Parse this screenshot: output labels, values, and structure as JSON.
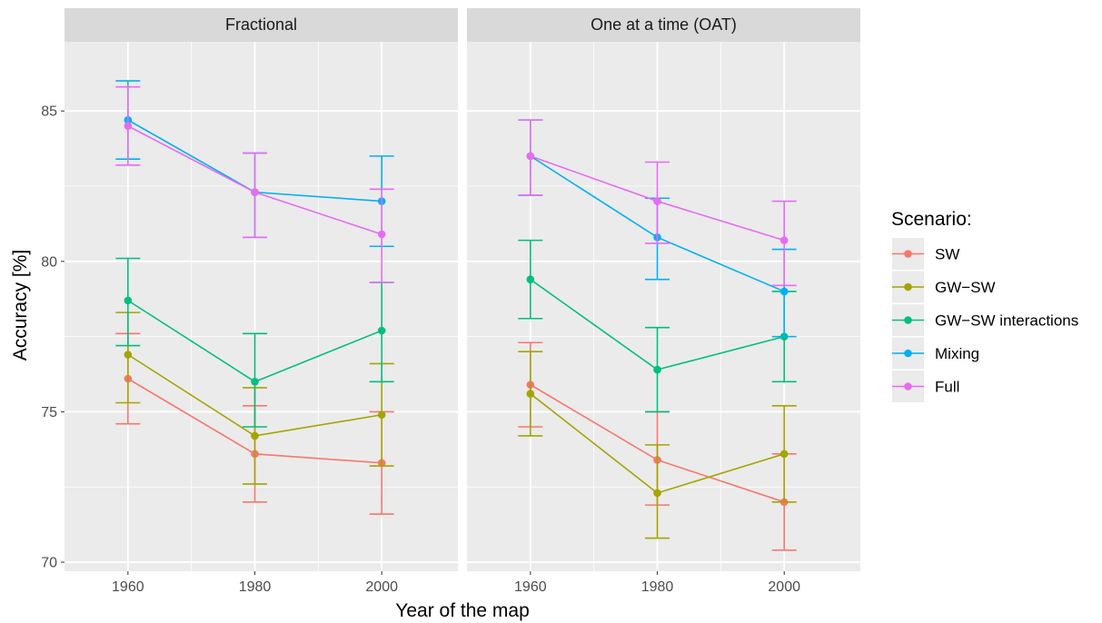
{
  "chart_data": {
    "type": "line",
    "xlabel": "Year of the map",
    "ylabel": "Accuracy [%]",
    "x_ticks": [
      "1960",
      "1980",
      "2000"
    ],
    "y_ticks": [
      "70",
      "75",
      "80",
      "85"
    ],
    "xlim": [
      1950,
      2012
    ],
    "ylim": [
      69.7,
      87.3
    ],
    "grid": true,
    "legend": {
      "title": "Scenario:",
      "position": "right",
      "entries": [
        "SW",
        "GW−SW",
        "GW−SW interactions",
        "Mixing",
        "Full"
      ]
    },
    "colors": {
      "SW": "#F8766D",
      "GW−SW": "#A3A500",
      "GW−SW interactions": "#00BF7D",
      "Mixing": "#00B0F6",
      "Full": "#E76BF3"
    },
    "panels": [
      {
        "title": "Fractional",
        "x": [
          1960,
          1980,
          2000
        ],
        "series": [
          {
            "name": "SW",
            "values": [
              76.1,
              73.6,
              73.3
            ],
            "lower": [
              74.6,
              72.0,
              71.6
            ],
            "upper": [
              77.6,
              75.2,
              75.0
            ]
          },
          {
            "name": "GW−SW",
            "values": [
              76.9,
              74.2,
              74.9
            ],
            "lower": [
              75.3,
              72.6,
              73.2
            ],
            "upper": [
              78.3,
              75.8,
              76.6
            ]
          },
          {
            "name": "GW−SW interactions",
            "values": [
              78.7,
              76.0,
              77.7
            ],
            "lower": [
              77.2,
              74.5,
              76.0
            ],
            "upper": [
              80.1,
              77.6,
              79.3
            ]
          },
          {
            "name": "Mixing",
            "values": [
              84.7,
              82.3,
              82.0
            ],
            "lower": [
              83.4,
              80.8,
              80.5
            ],
            "upper": [
              86.0,
              83.6,
              83.5
            ]
          },
          {
            "name": "Full",
            "values": [
              84.5,
              82.3,
              80.9
            ],
            "lower": [
              83.2,
              80.8,
              79.3
            ],
            "upper": [
              85.8,
              83.6,
              82.4
            ]
          }
        ]
      },
      {
        "title": "One at a time (OAT)",
        "x": [
          1960,
          1980,
          2000
        ],
        "series": [
          {
            "name": "SW",
            "values": [
              75.9,
              73.4,
              72.0
            ],
            "lower": [
              74.5,
              71.9,
              70.4
            ],
            "upper": [
              77.3,
              75.0,
              73.6
            ]
          },
          {
            "name": "GW−SW",
            "values": [
              75.6,
              72.3,
              73.6
            ],
            "lower": [
              74.2,
              70.8,
              72.0
            ],
            "upper": [
              77.0,
              73.9,
              75.2
            ]
          },
          {
            "name": "GW−SW interactions",
            "values": [
              79.4,
              76.4,
              77.5
            ],
            "lower": [
              78.1,
              75.0,
              76.0
            ],
            "upper": [
              80.7,
              77.8,
              79.0
            ]
          },
          {
            "name": "Mixing",
            "values": [
              83.5,
              80.8,
              79.0
            ],
            "lower": [
              82.2,
              79.4,
              77.5
            ],
            "upper": [
              84.7,
              82.1,
              80.4
            ]
          },
          {
            "name": "Full",
            "values": [
              83.5,
              82.0,
              80.7
            ],
            "lower": [
              82.2,
              80.6,
              79.2
            ],
            "upper": [
              84.7,
              83.3,
              82.0
            ]
          }
        ]
      }
    ]
  }
}
